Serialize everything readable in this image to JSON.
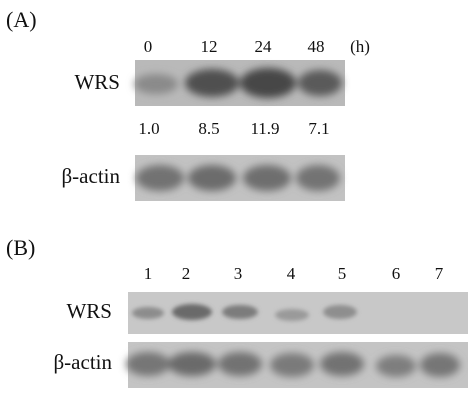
{
  "panel_a": {
    "label": "(A)",
    "times": [
      "0",
      "12",
      "24",
      "48"
    ],
    "time_unit": "(h)",
    "rows": [
      "WRS",
      "β-actin"
    ],
    "quantification": [
      "1.0",
      "8.5",
      "11.9",
      "7.1"
    ]
  },
  "panel_b": {
    "label": "(B)",
    "lanes": [
      "1",
      "2",
      "3",
      "4",
      "5",
      "6",
      "7"
    ],
    "rows": [
      "WRS",
      "β-actin"
    ]
  }
}
